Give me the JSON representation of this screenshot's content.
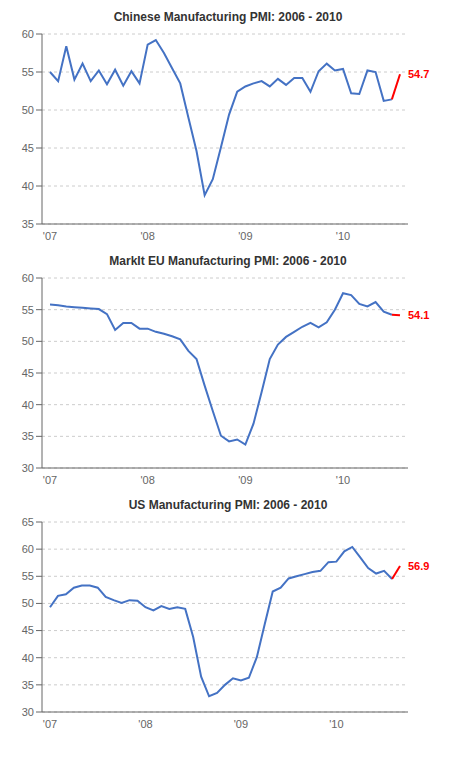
{
  "chart_data": [
    {
      "type": "line",
      "title": "Chinese Manufacturing PMI: 2006 - 2010",
      "categories": [
        "'07",
        null,
        null,
        null,
        null,
        null,
        null,
        null,
        null,
        null,
        null,
        null,
        "'08",
        null,
        null,
        null,
        null,
        null,
        null,
        null,
        null,
        null,
        null,
        null,
        "'09",
        null,
        null,
        null,
        null,
        null,
        null,
        null,
        null,
        null,
        null,
        null,
        "'10",
        null,
        null,
        null,
        null,
        null,
        null,
        null
      ],
      "series": [
        {
          "color": "#4472C4",
          "values": [
            55.0,
            53.8,
            58.4,
            54.0,
            56.1,
            53.8,
            55.2,
            53.4,
            55.3,
            53.2,
            55.1,
            53.5,
            58.6,
            59.2,
            57.5,
            55.5,
            53.5,
            49.0,
            44.6,
            38.8,
            40.9,
            45.1,
            49.4,
            52.4,
            53.1,
            53.5,
            53.8,
            53.1,
            54.1,
            53.3,
            54.2,
            54.2,
            52.4,
            55.1,
            56.1,
            55.2,
            55.4,
            52.2,
            52.1,
            55.2,
            55.0,
            51.2,
            51.4,
            null
          ]
        },
        {
          "color": "#FF0000",
          "data_labels": true,
          "values": [
            null,
            null,
            null,
            null,
            null,
            null,
            null,
            null,
            null,
            null,
            null,
            null,
            null,
            null,
            null,
            null,
            null,
            null,
            null,
            null,
            null,
            null,
            null,
            null,
            null,
            null,
            null,
            null,
            null,
            null,
            null,
            null,
            null,
            null,
            null,
            null,
            null,
            null,
            null,
            null,
            null,
            null,
            51.4,
            54.7
          ],
          "value_labels": [
            null,
            null,
            null,
            null,
            null,
            null,
            null,
            null,
            null,
            null,
            null,
            null,
            null,
            null,
            null,
            null,
            null,
            null,
            null,
            null,
            null,
            null,
            null,
            null,
            null,
            null,
            null,
            null,
            null,
            null,
            null,
            null,
            null,
            null,
            null,
            null,
            null,
            null,
            null,
            null,
            null,
            null,
            null,
            "54.7"
          ]
        }
      ],
      "ylim": [
        35,
        60
      ],
      "yticks": [
        35,
        40,
        45,
        50,
        55,
        60
      ],
      "grid": true
    },
    {
      "type": "line",
      "title": "MarkIt EU Manufacturing PMI: 2006 - 2010",
      "categories": [
        "'07",
        null,
        null,
        null,
        null,
        null,
        null,
        null,
        null,
        null,
        null,
        null,
        "'08",
        null,
        null,
        null,
        null,
        null,
        null,
        null,
        null,
        null,
        null,
        null,
        "'09",
        null,
        null,
        null,
        null,
        null,
        null,
        null,
        null,
        null,
        null,
        null,
        "'10",
        null,
        null,
        null,
        null,
        null,
        null,
        null
      ],
      "series": [
        {
          "color": "#4472C4",
          "values": [
            55.8,
            55.7,
            55.5,
            55.4,
            55.3,
            55.2,
            55.1,
            54.3,
            51.8,
            52.9,
            52.9,
            52.0,
            52.0,
            51.5,
            51.2,
            50.8,
            50.3,
            48.5,
            47.2,
            43.0,
            39.0,
            35.1,
            34.2,
            34.5,
            33.7,
            37.0,
            42.0,
            47.2,
            49.5,
            50.7,
            51.5,
            52.3,
            52.9,
            52.2,
            53.0,
            55.0,
            57.6,
            57.3,
            55.9,
            55.5,
            56.2,
            54.7,
            54.2,
            null
          ]
        },
        {
          "color": "#FF0000",
          "data_labels": true,
          "values": [
            null,
            null,
            null,
            null,
            null,
            null,
            null,
            null,
            null,
            null,
            null,
            null,
            null,
            null,
            null,
            null,
            null,
            null,
            null,
            null,
            null,
            null,
            null,
            null,
            null,
            null,
            null,
            null,
            null,
            null,
            null,
            null,
            null,
            null,
            null,
            null,
            null,
            null,
            null,
            null,
            null,
            null,
            54.2,
            54.1
          ],
          "value_labels": [
            null,
            null,
            null,
            null,
            null,
            null,
            null,
            null,
            null,
            null,
            null,
            null,
            null,
            null,
            null,
            null,
            null,
            null,
            null,
            null,
            null,
            null,
            null,
            null,
            null,
            null,
            null,
            null,
            null,
            null,
            null,
            null,
            null,
            null,
            null,
            null,
            null,
            null,
            null,
            null,
            null,
            null,
            null,
            "54.1"
          ]
        }
      ],
      "ylim": [
        30,
        60
      ],
      "yticks": [
        30,
        35,
        40,
        45,
        50,
        55,
        60
      ],
      "grid": true
    },
    {
      "type": "line",
      "title": "US Manufacturing PMI: 2006 - 2010",
      "categories": [
        "'07",
        null,
        null,
        null,
        null,
        null,
        null,
        null,
        null,
        null,
        null,
        null,
        "'08",
        null,
        null,
        null,
        null,
        null,
        null,
        null,
        null,
        null,
        null,
        null,
        "'09",
        null,
        null,
        null,
        null,
        null,
        null,
        null,
        null,
        null,
        null,
        null,
        "'10",
        null,
        null,
        null,
        null,
        null,
        null,
        null,
        null
      ],
      "series": [
        {
          "color": "#4472C4",
          "values": [
            49.3,
            51.4,
            51.7,
            52.9,
            53.3,
            53.3,
            52.9,
            51.2,
            50.6,
            50.1,
            50.6,
            50.5,
            49.3,
            48.7,
            49.5,
            49.0,
            49.3,
            49.0,
            43.8,
            36.5,
            32.9,
            33.5,
            35.0,
            36.2,
            35.8,
            36.3,
            40.1,
            46.2,
            52.2,
            52.9,
            54.6,
            55.0,
            55.4,
            55.8,
            56.0,
            57.6,
            57.7,
            59.6,
            60.4,
            58.5,
            56.5,
            55.5,
            56.0,
            54.5,
            null
          ]
        },
        {
          "color": "#FF0000",
          "data_labels": true,
          "values": [
            null,
            null,
            null,
            null,
            null,
            null,
            null,
            null,
            null,
            null,
            null,
            null,
            null,
            null,
            null,
            null,
            null,
            null,
            null,
            null,
            null,
            null,
            null,
            null,
            null,
            null,
            null,
            null,
            null,
            null,
            null,
            null,
            null,
            null,
            null,
            null,
            null,
            null,
            null,
            null,
            null,
            null,
            null,
            54.5,
            56.9
          ],
          "value_labels": [
            null,
            null,
            null,
            null,
            null,
            null,
            null,
            null,
            null,
            null,
            null,
            null,
            null,
            null,
            null,
            null,
            null,
            null,
            null,
            null,
            null,
            null,
            null,
            null,
            null,
            null,
            null,
            null,
            null,
            null,
            null,
            null,
            null,
            null,
            null,
            null,
            null,
            null,
            null,
            null,
            null,
            null,
            null,
            null,
            "56.9"
          ]
        }
      ],
      "ylim": [
        30,
        65
      ],
      "yticks": [
        30,
        35,
        40,
        45,
        50,
        55,
        60,
        65
      ],
      "grid": true
    }
  ]
}
